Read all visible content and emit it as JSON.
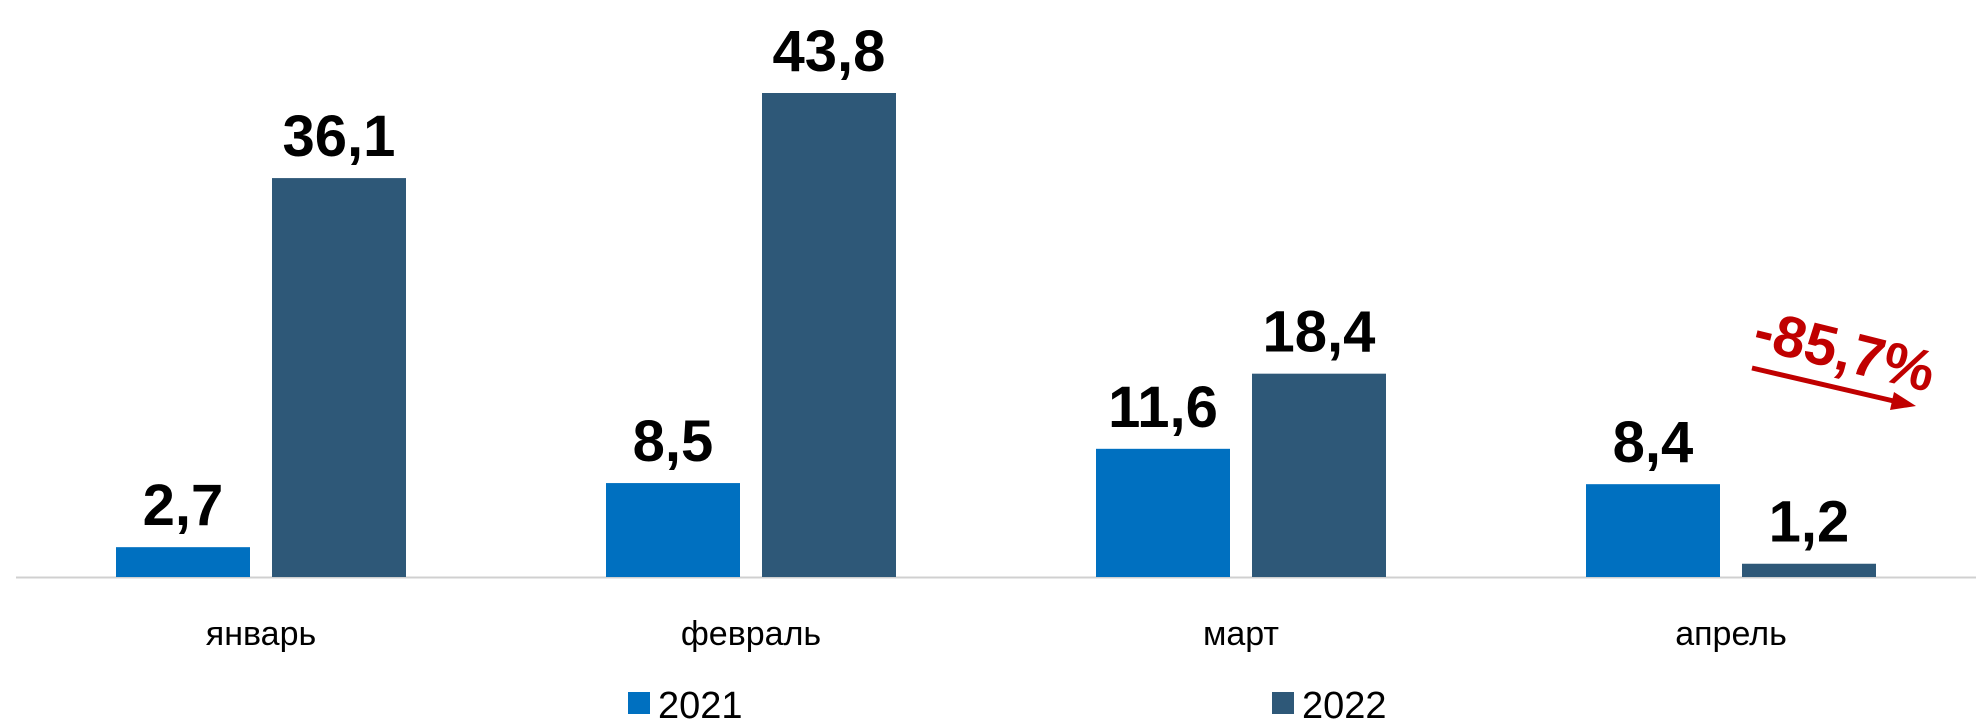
{
  "chart_data": {
    "type": "bar",
    "categories": [
      "январь",
      "февраль",
      "март",
      "апрель"
    ],
    "series": [
      {
        "name": "2021",
        "values": [
          2.7,
          8.5,
          11.6,
          8.4
        ],
        "labels": [
          "2,7",
          "8,5",
          "11,6",
          "8,4"
        ],
        "color": "#0070c0"
      },
      {
        "name": "2022",
        "values": [
          36.1,
          43.8,
          18.4,
          1.2
        ],
        "labels": [
          "36,1",
          "43,8",
          "18,4",
          "1,2"
        ],
        "color": "#2e5878"
      }
    ],
    "title": "",
    "xlabel": "",
    "ylabel": "",
    "ylim": [
      0,
      43.8
    ],
    "grid": false,
    "legend_position": "bottom",
    "annotation": {
      "text": "-85,7%",
      "color": "#c00000"
    },
    "axis_color": "#d0d0d0"
  }
}
